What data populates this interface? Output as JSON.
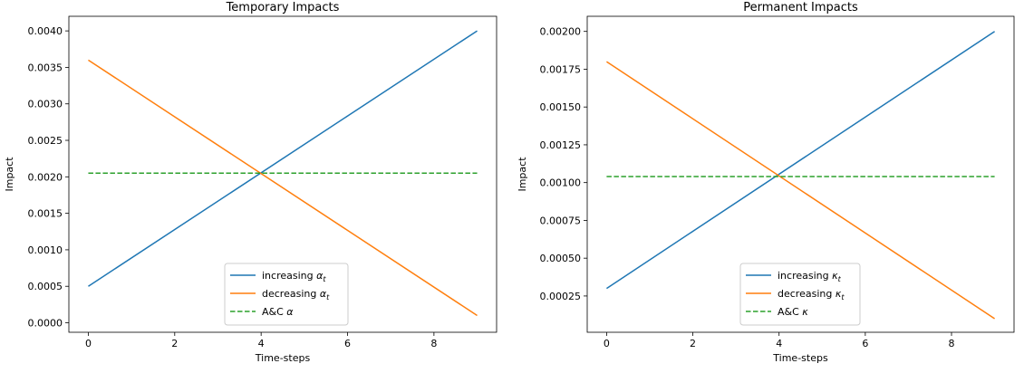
{
  "chart_data": [
    {
      "type": "line",
      "title": "Temporary Impacts",
      "xlabel": "Time-steps",
      "ylabel": "Impact",
      "xlim": [
        -0.45,
        9.45
      ],
      "ylim": [
        -0.00013,
        0.0042
      ],
      "xticks": [
        0,
        2,
        4,
        6,
        8
      ],
      "xtick_labels": [
        "0",
        "2",
        "4",
        "6",
        "8"
      ],
      "yticks": [
        0,
        0.0005,
        0.001,
        0.0015,
        0.002,
        0.0025,
        0.003,
        0.0035,
        0.004
      ],
      "ytick_labels": [
        "0.0000",
        "0.0005",
        "0.0010",
        "0.0015",
        "0.0020",
        "0.0025",
        "0.0030",
        "0.0035",
        "0.0040"
      ],
      "legend_position": "lower center",
      "series": [
        {
          "name": "increasing",
          "sym": "α",
          "sub": "t",
          "color": "#1f77b4",
          "dash": "solid",
          "x": [
            0,
            9
          ],
          "y": [
            0.0005,
            0.004
          ]
        },
        {
          "name": "decreasing",
          "sym": "α",
          "sub": "t",
          "color": "#ff7f0e",
          "dash": "solid",
          "x": [
            0,
            9
          ],
          "y": [
            0.0036,
            0.0001
          ]
        },
        {
          "name": "A&C",
          "sym": "α",
          "sub": "",
          "color": "#2ca02c",
          "dash": "dashed",
          "x": [
            0,
            9
          ],
          "y": [
            0.00205,
            0.00205
          ]
        }
      ]
    },
    {
      "type": "line",
      "title": "Permanent Impacts",
      "xlabel": "Time-steps",
      "ylabel": "Impact",
      "xlim": [
        -0.45,
        9.45
      ],
      "ylim": [
        1e-05,
        0.0021
      ],
      "xticks": [
        0,
        2,
        4,
        6,
        8
      ],
      "xtick_labels": [
        "0",
        "2",
        "4",
        "6",
        "8"
      ],
      "yticks": [
        0.00025,
        0.0005,
        0.00075,
        0.001,
        0.00125,
        0.0015,
        0.00175,
        0.002
      ],
      "ytick_labels": [
        "0.00025",
        "0.00050",
        "0.00075",
        "0.00100",
        "0.00125",
        "0.00150",
        "0.00175",
        "0.00200"
      ],
      "legend_position": "lower center",
      "series": [
        {
          "name": "increasing",
          "sym": "κ",
          "sub": "t",
          "color": "#1f77b4",
          "dash": "solid",
          "x": [
            0,
            9
          ],
          "y": [
            0.0003,
            0.002
          ]
        },
        {
          "name": "decreasing",
          "sym": "κ",
          "sub": "t",
          "color": "#ff7f0e",
          "dash": "solid",
          "x": [
            0,
            9
          ],
          "y": [
            0.0018,
            0.0001
          ]
        },
        {
          "name": "A&C",
          "sym": "κ",
          "sub": "",
          "color": "#2ca02c",
          "dash": "dashed",
          "x": [
            0,
            9
          ],
          "y": [
            0.00104,
            0.00104
          ]
        }
      ]
    }
  ]
}
